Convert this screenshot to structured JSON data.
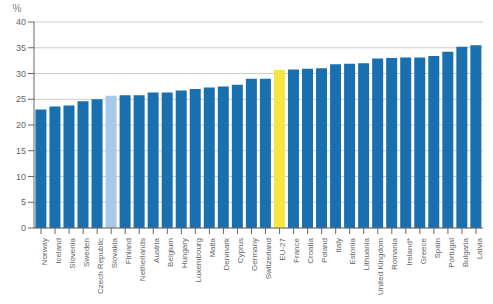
{
  "chart_data": {
    "type": "bar",
    "categories": [
      "Norway",
      "Iceland",
      "Slovenia",
      "Sweden",
      "Czech Republic",
      "Slovakia",
      "Finland",
      "Netherlands",
      "Austria",
      "Belgium",
      "Hungary",
      "Luxembourg",
      "Malta",
      "Denmark",
      "Cyprus",
      "Germany",
      "Switzerland",
      "EU-27",
      "France",
      "Croatia",
      "Poland",
      "Italy",
      "Estonia",
      "Lithuania",
      "United Kingdom",
      "Romania",
      "Ireland*",
      "Greece",
      "Spain",
      "Portugal",
      "Bulgaria",
      "Latvia"
    ],
    "values": [
      23.0,
      23.6,
      23.8,
      24.6,
      25.0,
      25.7,
      25.8,
      25.8,
      26.3,
      26.3,
      26.7,
      27.0,
      27.3,
      27.5,
      27.8,
      29.0,
      29.0,
      30.7,
      30.8,
      30.9,
      31.0,
      31.8,
      31.9,
      32.0,
      32.9,
      33.0,
      33.1,
      33.1,
      33.4,
      34.2,
      35.2,
      35.5
    ],
    "colors": [
      "#1a6faf",
      "#1a6faf",
      "#1a6faf",
      "#1a6faf",
      "#1a6faf",
      "#a8c8e8",
      "#1a6faf",
      "#1a6faf",
      "#1a6faf",
      "#1a6faf",
      "#1a6faf",
      "#1a6faf",
      "#1a6faf",
      "#1a6faf",
      "#1a6faf",
      "#1a6faf",
      "#1a6faf",
      "#f5e642",
      "#1a6faf",
      "#1a6faf",
      "#1a6faf",
      "#1a6faf",
      "#1a6faf",
      "#1a6faf",
      "#1a6faf",
      "#1a6faf",
      "#1a6faf",
      "#1a6faf",
      "#1a6faf",
      "#1a6faf",
      "#1a6faf",
      "#1a6faf"
    ],
    "ylabel": "%",
    "ylim": [
      0,
      40
    ],
    "yticks": [
      0,
      5,
      10,
      15,
      20,
      25,
      30,
      35,
      40
    ],
    "grid": true
  }
}
